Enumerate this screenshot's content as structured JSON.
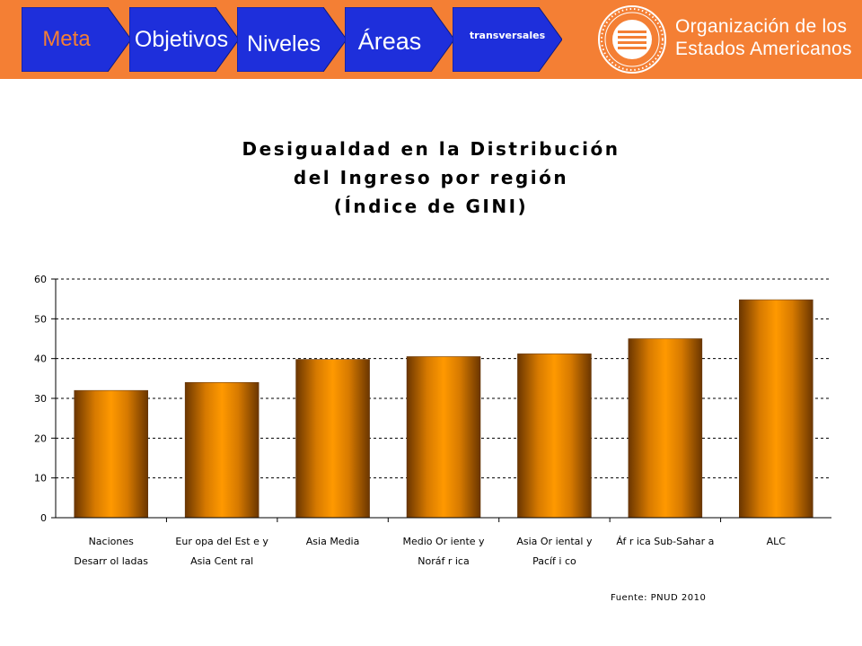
{
  "nav": {
    "tabs": [
      {
        "label": "Meta",
        "color": "#f47f34"
      },
      {
        "label": "Objetivos",
        "color": "#ffffff"
      },
      {
        "label": "Niveles",
        "color": "#ffffff"
      },
      {
        "label": "Áreas",
        "color": "#ffffff"
      },
      {
        "label": "transversales",
        "color": "#ffffff"
      }
    ],
    "tab_fill": "#1e2fdb"
  },
  "org": {
    "line1": "Organización de los",
    "line2": "Estados Americanos",
    "logo_icon": "oas-seal-icon"
  },
  "header_color": "#f47f34",
  "source": "Fuente: PNUD 2010",
  "chart_data": {
    "type": "bar",
    "title": [
      "Desigualdad en la Distribución",
      "del Ingreso por región",
      "(Índice de GINI)"
    ],
    "categories": [
      [
        "Naciones",
        "Desarr ol ladas"
      ],
      [
        "Eur opa del Est e y",
        "Asia Cent ral"
      ],
      [
        "Asia Media"
      ],
      [
        "Medio Or iente y",
        "Noráf r ica"
      ],
      [
        "Asia Or iental y",
        "Pacíf i co"
      ],
      [
        "Áf r ica Sub-Sahar a"
      ],
      [
        "ALC"
      ]
    ],
    "values": [
      32,
      34,
      39.8,
      40.5,
      41.2,
      45,
      54.8
    ],
    "ylim": [
      0,
      60
    ],
    "yticks": [
      "0",
      "10",
      "20",
      "30",
      "40",
      "50",
      "60"
    ],
    "grid": true,
    "bar_color": "#ff9900",
    "bar_edge_color": "#6b3600"
  }
}
